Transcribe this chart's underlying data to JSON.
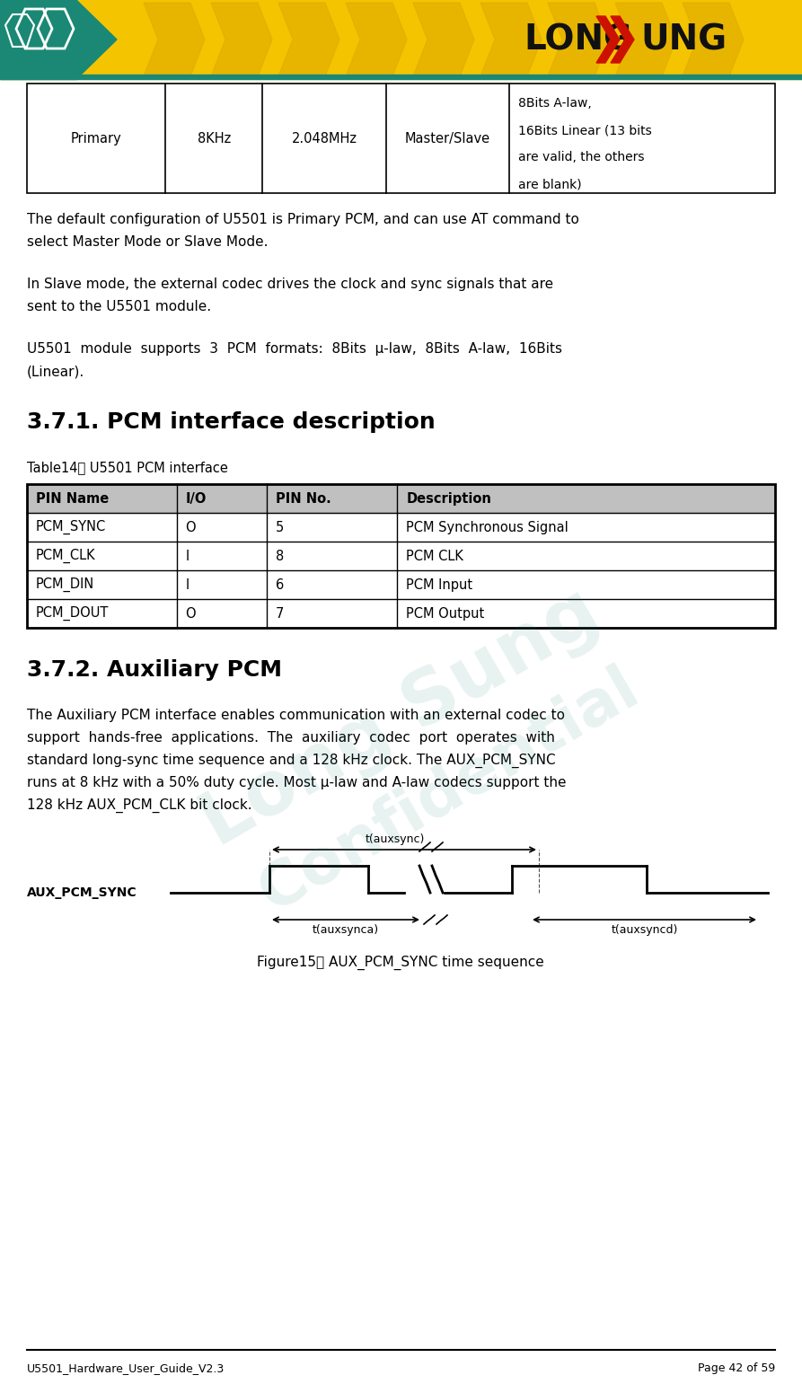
{
  "page_width": 8.93,
  "page_height": 15.41,
  "bg_color": "#ffffff",
  "header_bg": "#f5c400",
  "header_teal": "#1a8874",
  "footer_left": "U5501_Hardware_User_Guide_V2.3",
  "footer_right": "Page 42 of 59",
  "top_table_cols": [
    "Primary",
    "8KHz",
    "2.048MHz",
    "Master/Slave",
    "8Bits A-law,\n16Bits Linear (13 bits\nare valid, the others\nare blank)"
  ],
  "pcm_table_headers": [
    "PIN Name",
    "I/O",
    "PIN No.",
    "Description"
  ],
  "pcm_table_rows": [
    [
      "PCM_SYNC",
      "O",
      "5",
      "PCM Synchronous Signal"
    ],
    [
      "PCM_CLK",
      "I",
      "8",
      "PCM CLK"
    ],
    [
      "PCM_DIN",
      "I",
      "6",
      "PCM Input"
    ],
    [
      "PCM_DOUT",
      "O",
      "7",
      "PCM Output"
    ]
  ],
  "pcm_table_header_bg": "#c0c0c0",
  "section1_title": "3.7.1. PCM interface description",
  "table14_caption": "Table14： U5501 PCM interface",
  "section2_title": "3.7.2. Auxiliary PCM",
  "figure_caption": "Figure15： AUX_PCM_SYNC time sequence",
  "aux_pcm_label": "AUX_PCM_SYNC"
}
